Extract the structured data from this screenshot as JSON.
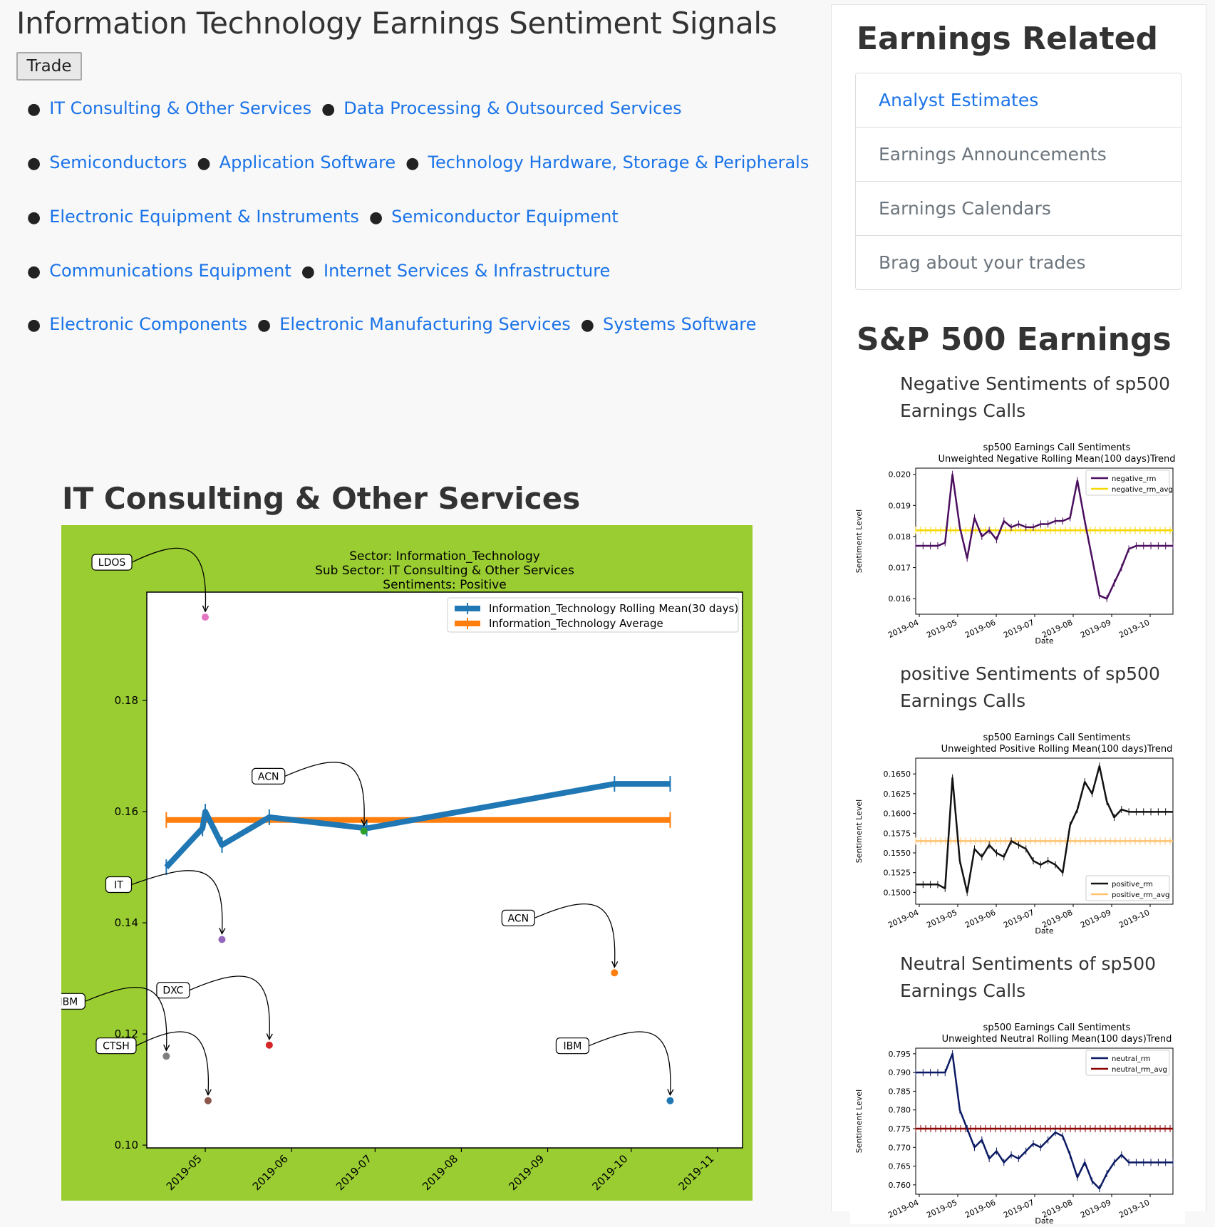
{
  "page": {
    "title": "Information Technology Earnings Sentiment Signals",
    "trade_button": "Trade"
  },
  "subsectors": [
    [
      "IT Consulting & Other Services",
      "Data Processing & Outsourced Services"
    ],
    [
      "Semiconductors",
      "Application Software",
      "Technology Hardware, Storage & Peripherals"
    ],
    [
      "Electronic Equipment & Instruments",
      "Semiconductor Equipment"
    ],
    [
      "Communications Equipment",
      "Internet Services & Infrastructure"
    ],
    [
      "Electronic Components",
      "Electronic Manufacturing Services",
      "Systems Software"
    ]
  ],
  "subsector_heading": "IT Consulting & Other Services",
  "sidebar": {
    "title": "Earnings Related",
    "items": [
      {
        "label": "Analyst Estimates",
        "active": true
      },
      {
        "label": "Earnings Announcements",
        "active": false
      },
      {
        "label": "Earnings Calendars",
        "active": false
      },
      {
        "label": "Brag about your trades",
        "active": false
      }
    ],
    "sp500_title": "S&P 500 Earnings",
    "mini_charts": [
      {
        "heading": "Negative Sentiments of sp500 Earnings Calls"
      },
      {
        "heading": "positive Sentiments of sp500 Earnings Calls"
      },
      {
        "heading": "Neutral Sentiments of sp500 Earnings Calls"
      }
    ]
  },
  "colors": {
    "link": "#1a73e8",
    "chart_bg": "#9acd32",
    "rolling": "#1f77b4",
    "average": "#ff7f0e"
  },
  "chart_data": [
    {
      "type": "line",
      "title": [
        "Sector:  Information_Technology",
        "Sub Sector:  IT Consulting & Other Services",
        "Sentiments:  Positive"
      ],
      "x_ticks": [
        "2019-05",
        "2019-06",
        "2019-07",
        "2019-08",
        "2019-09",
        "2019-10",
        "2019-11"
      ],
      "y_ticks": [
        "0.10",
        "0.12",
        "0.14",
        "0.16",
        "0.18"
      ],
      "xlim": [
        "2019-04-10",
        "2019-11-10"
      ],
      "ylim": [
        0.0995,
        0.1995
      ],
      "legend": "top-right",
      "series": [
        {
          "name": "Information_Technology Rolling Mean(30 days)",
          "color": "#1f77b4",
          "x": [
            "2019-04-17",
            "2019-04-30",
            "2019-05-01",
            "2019-05-07",
            "2019-05-24",
            "2019-06-28",
            "2019-09-25",
            "2019-10-15"
          ],
          "y": [
            0.15,
            0.157,
            0.16,
            0.154,
            0.159,
            0.157,
            0.165,
            0.165
          ]
        },
        {
          "name": "Information_Technology Average",
          "color": "#ff7f0e",
          "x": [
            "2019-04-17",
            "2019-10-15"
          ],
          "y": [
            0.1585,
            0.1585
          ]
        }
      ],
      "points": [
        {
          "label": "LDOS",
          "x": "2019-05-01",
          "y": 0.195,
          "color": "#e377c2"
        },
        {
          "label": "ACN",
          "x": "2019-06-27",
          "y": 0.1565,
          "color": "#2ca02c"
        },
        {
          "label": "IT",
          "x": "2019-05-07",
          "y": 0.137,
          "color": "#9467bd"
        },
        {
          "label": "ACN",
          "x": "2019-09-25",
          "y": 0.131,
          "color": "#ff7f0e"
        },
        {
          "label": "DXC",
          "x": "2019-05-24",
          "y": 0.118,
          "color": "#d62728"
        },
        {
          "label": "IBM",
          "x": "2019-04-17",
          "y": 0.116,
          "color": "#7f7f7f"
        },
        {
          "label": "CTSH",
          "x": "2019-05-02",
          "y": 0.108,
          "color": "#8c564b"
        },
        {
          "label": "IBM",
          "x": "2019-10-15",
          "y": 0.108,
          "color": "#1f77b4"
        }
      ]
    },
    {
      "type": "line",
      "title": [
        "sp500 Earnings Call Sentiments",
        "Unweighted Negative Rolling Mean(100 days)Trend"
      ],
      "xlabel": "Date",
      "ylabel": "Sentiment Level",
      "x_ticks": [
        "2019-04",
        "2019-05",
        "2019-06",
        "2019-07",
        "2019-08",
        "2019-09",
        "2019-10"
      ],
      "y_ticks": [
        "0.016",
        "0.017",
        "0.018",
        "0.019",
        "0.020"
      ],
      "ylim": [
        0.0155,
        0.0202
      ],
      "legend": "top-right",
      "series": [
        {
          "name": "negative_rm",
          "color": "#4b0f5f",
          "y": [
            0.0177,
            0.0177,
            0.0177,
            0.0177,
            0.0178,
            0.02,
            0.0183,
            0.0173,
            0.0186,
            0.018,
            0.0182,
            0.0179,
            0.0185,
            0.0183,
            0.0184,
            0.0183,
            0.0183,
            0.0184,
            0.0184,
            0.0185,
            0.0185,
            0.0186,
            0.0198,
            0.0185,
            0.0173,
            0.0161,
            0.016,
            0.0165,
            0.017,
            0.0176,
            0.0177,
            0.0177,
            0.0177,
            0.0177,
            0.0177,
            0.0177
          ]
        },
        {
          "name": "negative_rm_avg",
          "color": "#f5d800",
          "y": [
            0.0182,
            0.0182
          ]
        }
      ]
    },
    {
      "type": "line",
      "title": [
        "sp500 Earnings Call Sentiments",
        "Unweighted Positive Rolling Mean(100 days)Trend"
      ],
      "xlabel": "Date",
      "ylabel": "Sentiment Level",
      "x_ticks": [
        "2019-04",
        "2019-05",
        "2019-06",
        "2019-07",
        "2019-08",
        "2019-09",
        "2019-10"
      ],
      "y_ticks": [
        "0.1500",
        "0.1525",
        "0.1550",
        "0.1575",
        "0.1600",
        "0.1625",
        "0.1650"
      ],
      "ylim": [
        0.1485,
        0.167
      ],
      "legend": "bottom-right",
      "series": [
        {
          "name": "positive_rm",
          "color": "#111111",
          "y": [
            0.151,
            0.151,
            0.151,
            0.151,
            0.1505,
            0.1645,
            0.154,
            0.15,
            0.1555,
            0.1545,
            0.156,
            0.155,
            0.1545,
            0.1565,
            0.156,
            0.1555,
            0.154,
            0.1535,
            0.154,
            0.1535,
            0.1525,
            0.1585,
            0.1605,
            0.164,
            0.1625,
            0.166,
            0.1615,
            0.1595,
            0.1605,
            0.1602,
            0.1602,
            0.1602,
            0.1602,
            0.1602,
            0.1602,
            0.1602
          ]
        },
        {
          "name": "positive_rm_avg",
          "color": "#ffc26e",
          "y": [
            0.1565,
            0.1565
          ]
        }
      ]
    },
    {
      "type": "line",
      "title": [
        "sp500 Earnings Call Sentiments",
        "Unweighted Neutral Rolling Mean(100 days)Trend"
      ],
      "xlabel": "Date",
      "ylabel": "Sentiment Level",
      "x_ticks": [
        "2019-04",
        "2019-05",
        "2019-06",
        "2019-07",
        "2019-08",
        "2019-09",
        "2019-10"
      ],
      "y_ticks": [
        "0.760",
        "0.765",
        "0.770",
        "0.775",
        "0.780",
        "0.785",
        "0.790",
        "0.795"
      ],
      "ylim": [
        0.7575,
        0.7965
      ],
      "legend": "top-right",
      "series": [
        {
          "name": "neutral_rm",
          "color": "#0b1a63",
          "y": [
            0.79,
            0.79,
            0.79,
            0.79,
            0.79,
            0.795,
            0.78,
            0.775,
            0.77,
            0.772,
            0.767,
            0.769,
            0.766,
            0.768,
            0.767,
            0.769,
            0.771,
            0.77,
            0.772,
            0.774,
            0.773,
            0.768,
            0.762,
            0.766,
            0.761,
            0.759,
            0.763,
            0.766,
            0.768,
            0.766,
            0.766,
            0.766,
            0.766,
            0.766,
            0.766,
            0.766
          ]
        },
        {
          "name": "neutral_rm_avg",
          "color": "#8b0000",
          "y": [
            0.775,
            0.775
          ]
        }
      ]
    }
  ]
}
